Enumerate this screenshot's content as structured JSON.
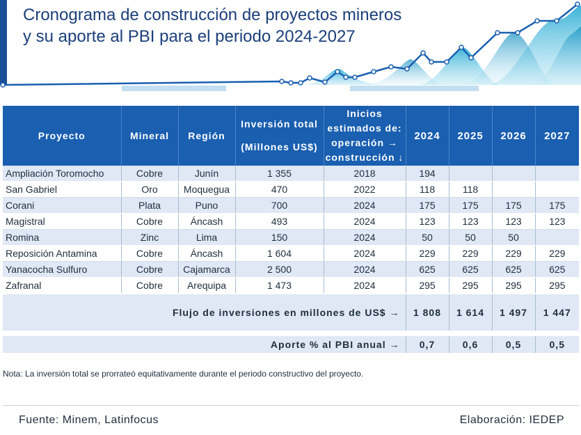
{
  "title": {
    "line1": "Cronograma de construcción de proyectos mineros",
    "line2": "y su aporte al PBI para el periodo 2024-2027"
  },
  "colors": {
    "header_blue": "#1a5fb0",
    "title_blue": "#1b3f7a",
    "row_alt": "#dfe8f4",
    "deco_teal": "#1aa5cf"
  },
  "table": {
    "headers": {
      "proyecto": "Proyecto",
      "mineral": "Mineral",
      "region": "Región",
      "inversion_line1": "Inversión total",
      "inversion_line2": "(Millones US$)",
      "inicios_line1": "Inicios",
      "inicios_line2": "estimados de:",
      "inicios_line3": "operación →",
      "inicios_line4": "construcción ↓",
      "y2024": "2024",
      "y2025": "2025",
      "y2026": "2026",
      "y2027": "2027"
    },
    "rows": [
      {
        "proyecto": "Ampliación Toromocho",
        "mineral": "Cobre",
        "region": "Junín",
        "inversion": "1 355",
        "inicio": "2018",
        "y2024": "194",
        "y2025": "",
        "y2026": "",
        "y2027": ""
      },
      {
        "proyecto": "San Gabriel",
        "mineral": "Oro",
        "region": "Moquegua",
        "inversion": "470",
        "inicio": "2022",
        "y2024": "118",
        "y2025": "118",
        "y2026": "",
        "y2027": ""
      },
      {
        "proyecto": "Corani",
        "mineral": "Plata",
        "region": "Puno",
        "inversion": "700",
        "inicio": "2024",
        "y2024": "175",
        "y2025": "175",
        "y2026": "175",
        "y2027": "175"
      },
      {
        "proyecto": "Magistral",
        "mineral": "Cobre",
        "region": "Áncash",
        "inversion": "493",
        "inicio": "2024",
        "y2024": "123",
        "y2025": "123",
        "y2026": "123",
        "y2027": "123"
      },
      {
        "proyecto": "Romina",
        "mineral": "Zinc",
        "region": "Lima",
        "inversion": "150",
        "inicio": "2024",
        "y2024": "50",
        "y2025": "50",
        "y2026": "50",
        "y2027": ""
      },
      {
        "proyecto": "Reposición Antamina",
        "mineral": "Cobre",
        "region": "Áncash",
        "inversion": "1 604",
        "inicio": "2024",
        "y2024": "229",
        "y2025": "229",
        "y2026": "229",
        "y2027": "229"
      },
      {
        "proyecto": "Yanacocha Sulfuro",
        "mineral": "Cobre",
        "region": "Cajamarca",
        "inversion": "2 500",
        "inicio": "2024",
        "y2024": "625",
        "y2025": "625",
        "y2026": "625",
        "y2027": "625"
      },
      {
        "proyecto": "Zafranal",
        "mineral": "Cobre",
        "region": "Arequipa",
        "inversion": "1 473",
        "inicio": "2024",
        "y2024": "295",
        "y2025": "295",
        "y2026": "295",
        "y2027": "295"
      }
    ],
    "flujo": {
      "label": "Flujo de inversiones en millones de US$ →",
      "y2024": "1 808",
      "y2025": "1 614",
      "y2026": "1 497",
      "y2027": "1 447"
    },
    "aporte": {
      "label": "Aporte % al PBI anual →",
      "y2024": "0,7",
      "y2025": "0,6",
      "y2026": "0,5",
      "y2027": "0,5"
    }
  },
  "note": "Nota: La inversión total se prorrateó equitativamente durante el periodo constructivo del proyecto.",
  "footer": {
    "fuente": "Fuente: Minem, Latinfocus",
    "elaboracion": "Elaboración: IEDEP"
  }
}
